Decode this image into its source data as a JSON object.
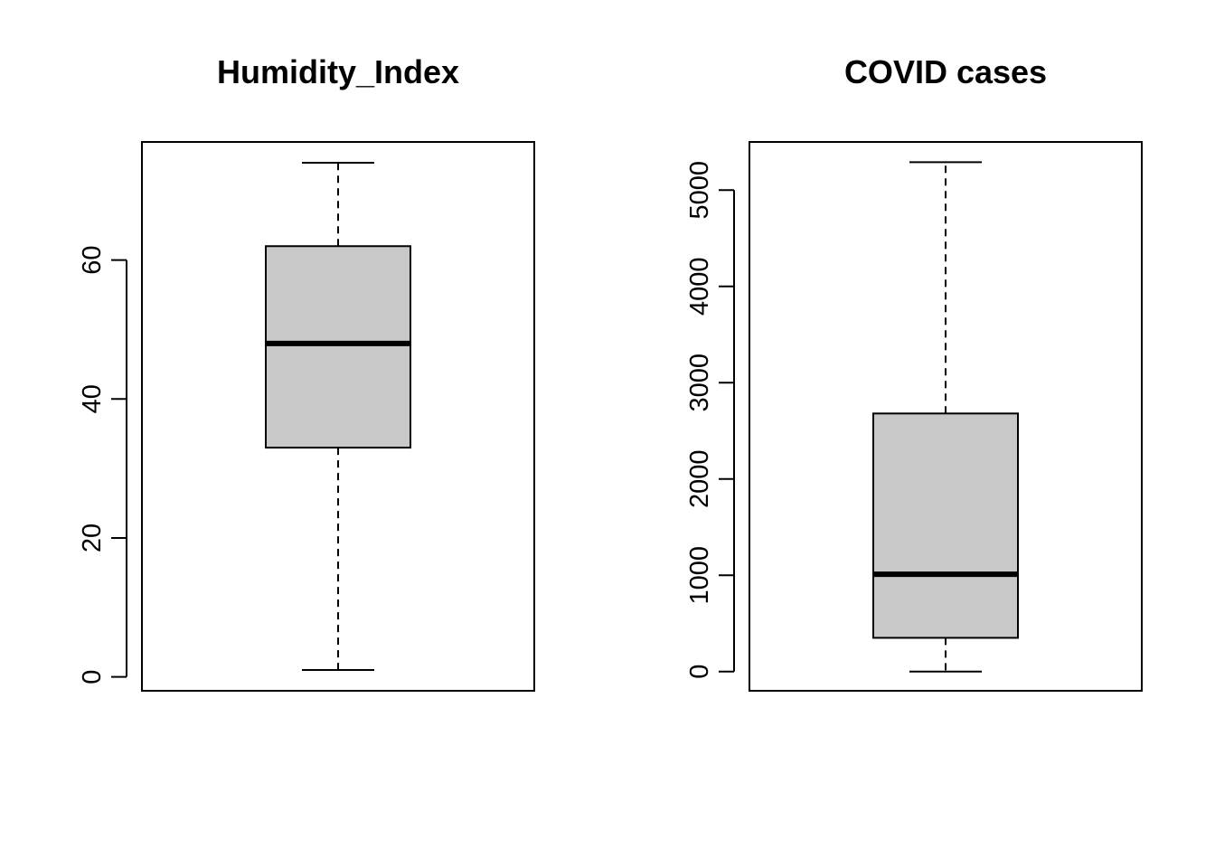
{
  "chart_data": [
    {
      "type": "boxplot",
      "title": "Humidity_Index",
      "xlabel": "",
      "ylabel": "",
      "ylim": [
        -2,
        77
      ],
      "yticks": [
        0,
        20,
        40,
        60
      ],
      "ytick_labels": [
        "0",
        "20",
        "40",
        "60"
      ],
      "box": {
        "min": 1,
        "q1": 33,
        "median": 48,
        "q3": 62,
        "max": 74
      },
      "grid": false,
      "colors": {
        "box_fill": "#c8c8c8",
        "line": "#000000"
      }
    },
    {
      "type": "boxplot",
      "title": "COVID cases",
      "xlabel": "",
      "ylabel": "",
      "ylim": [
        -200,
        5500
      ],
      "yticks": [
        0,
        1000,
        2000,
        3000,
        4000,
        5000
      ],
      "ytick_labels": [
        "0",
        "1000",
        "2000",
        "3000",
        "4000",
        "5000"
      ],
      "box": {
        "min": 0,
        "q1": 350,
        "median": 1010,
        "q3": 2680,
        "max": 5290
      },
      "grid": false,
      "colors": {
        "box_fill": "#c8c8c8",
        "line": "#000000"
      }
    }
  ]
}
